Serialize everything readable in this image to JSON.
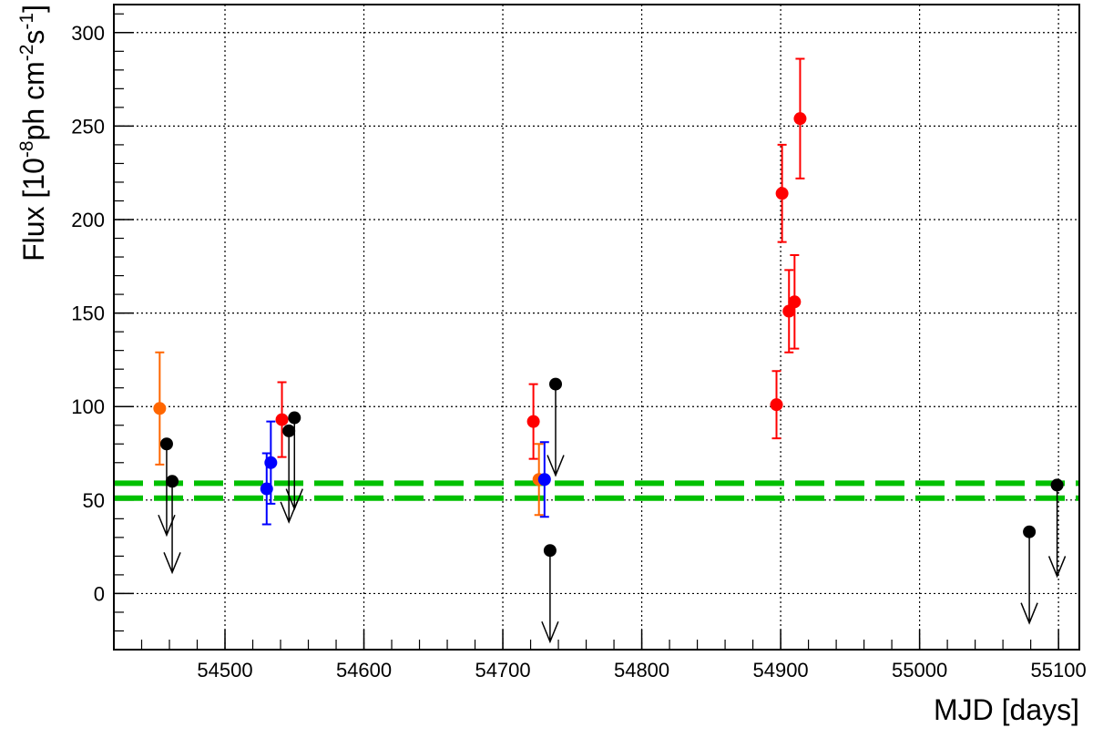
{
  "chart_data": {
    "type": "scatter",
    "xlabel": "MJD [days]",
    "ylabel": [
      "Flux [10",
      "-8",
      "ph cm",
      "-2",
      "s",
      "-1",
      "]"
    ],
    "xlim": [
      54420,
      55115
    ],
    "xticks": [
      54500,
      54600,
      54700,
      54800,
      54900,
      55000,
      55100
    ],
    "ylim": [
      -30,
      315
    ],
    "yticks": [
      0,
      50,
      100,
      150,
      200,
      250,
      300
    ],
    "grid": true,
    "series": [
      {
        "color": "#ff6600",
        "x": [
          54453,
          54726
        ],
        "values": [
          99,
          61
        ],
        "errors": [
          30,
          19
        ]
      },
      {
        "color": "#0000ff",
        "x": [
          54530,
          54533,
          54730
        ],
        "values": [
          56,
          70,
          61
        ],
        "errors": [
          19,
          22,
          20
        ]
      },
      {
        "color": "#ff0000",
        "x": [
          54541,
          54722,
          54897,
          54901,
          54906,
          54910,
          54914
        ],
        "values": [
          93,
          92,
          101,
          214,
          151,
          156,
          254
        ],
        "errors": [
          20,
          20,
          18,
          26,
          22,
          25,
          32
        ]
      },
      {
        "color": "#000000",
        "upper_limit": true,
        "x": [
          54458,
          54462,
          54546,
          54550,
          54734,
          54738,
          55079,
          55099
        ],
        "values": [
          80,
          60,
          87,
          94,
          23,
          112,
          33,
          58
        ]
      }
    ],
    "hlines": [
      {
        "value": 59,
        "color": "#00c000"
      },
      {
        "value": 51,
        "color": "#00c000"
      }
    ]
  }
}
